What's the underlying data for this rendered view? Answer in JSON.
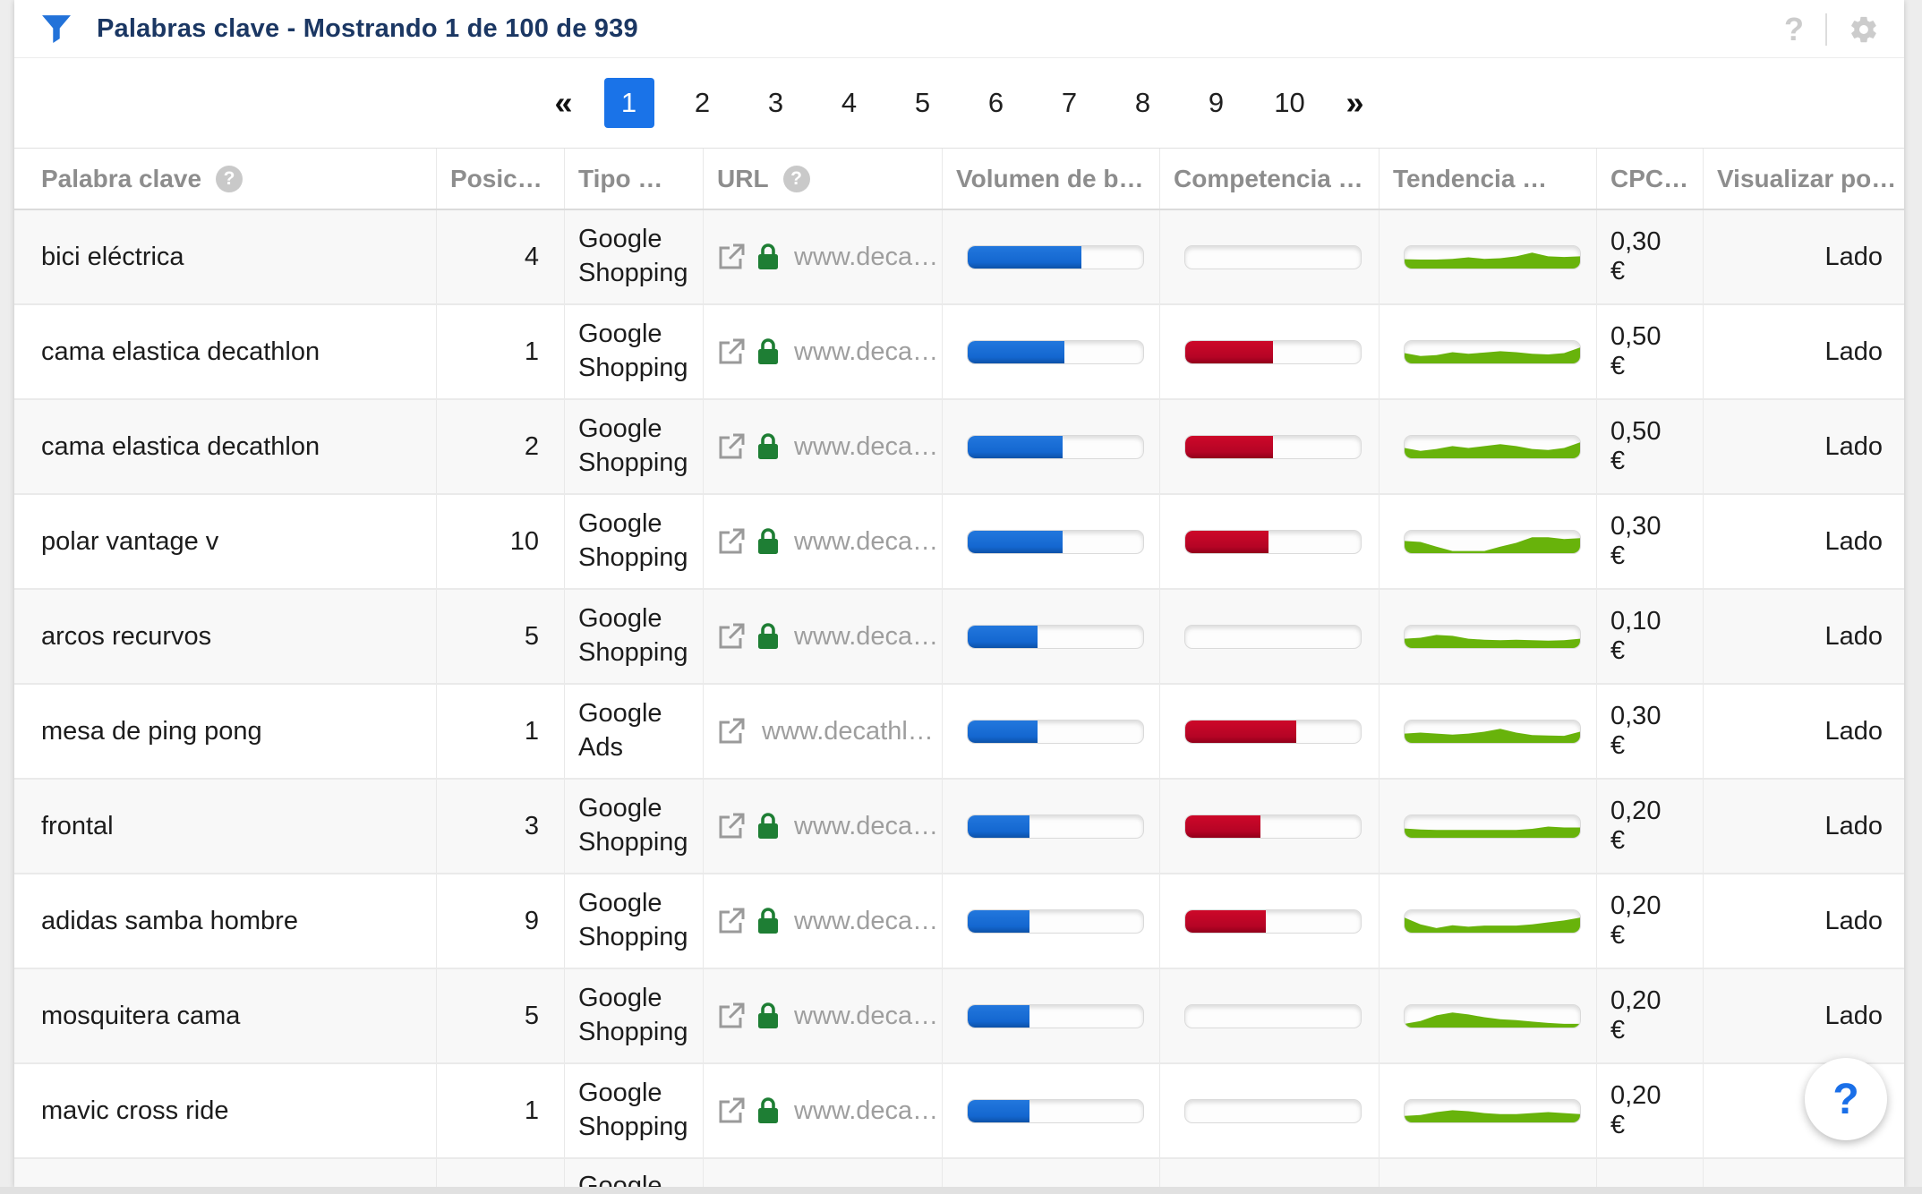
{
  "header": {
    "title": "Palabras clave - Mostrando 1 de 100 de 939",
    "help_label": "?"
  },
  "pagination": {
    "prev": "«",
    "next": "»",
    "pages": [
      "1",
      "2",
      "3",
      "4",
      "5",
      "6",
      "7",
      "8",
      "9",
      "10"
    ],
    "active": "1"
  },
  "table": {
    "columns": [
      {
        "id": "keyword",
        "label": "Palabra clave",
        "help": true
      },
      {
        "id": "position",
        "label": "Posic…",
        "help": false
      },
      {
        "id": "type",
        "label": "Tipo …",
        "help": false
      },
      {
        "id": "url",
        "label": "URL",
        "help": true
      },
      {
        "id": "volume",
        "label": "Volumen de b…",
        "help": false
      },
      {
        "id": "competition",
        "label": "Competencia …",
        "help": false
      },
      {
        "id": "trend",
        "label": "Tendencia …",
        "help": false
      },
      {
        "id": "cpc",
        "label": "CPC…",
        "help": false
      },
      {
        "id": "display",
        "label": "Visualizar po…",
        "help": false
      }
    ],
    "rows": [
      {
        "keyword": "bici eléctrica",
        "position": "4",
        "type": "Google Shopping",
        "url": {
          "text": "www.deca…",
          "lock": true
        },
        "volume": 0.65,
        "competition": 0,
        "trend": [
          0.4,
          0.38,
          0.38,
          0.42,
          0.5,
          0.42,
          0.45,
          0.55,
          0.75,
          0.55,
          0.52,
          0.55
        ],
        "cpc": "0,30 €",
        "display": "Lado"
      },
      {
        "keyword": "cama elastica decathlon",
        "position": "1",
        "type": "Google Shopping",
        "url": {
          "text": "www.deca…",
          "lock": true
        },
        "volume": 0.55,
        "competition": 0.5,
        "trend": [
          0.45,
          0.3,
          0.35,
          0.5,
          0.42,
          0.48,
          0.55,
          0.5,
          0.42,
          0.38,
          0.45,
          0.75
        ],
        "cpc": "0,50 €",
        "display": "Lado"
      },
      {
        "keyword": "cama elastica decathlon",
        "position": "2",
        "type": "Google Shopping",
        "url": {
          "text": "www.deca…",
          "lock": true
        },
        "volume": 0.54,
        "competition": 0.5,
        "trend": [
          0.45,
          0.3,
          0.4,
          0.55,
          0.45,
          0.55,
          0.65,
          0.55,
          0.4,
          0.35,
          0.45,
          0.75
        ],
        "cpc": "0,50 €",
        "display": "Lado"
      },
      {
        "keyword": "polar vantage v",
        "position": "10",
        "type": "Google Shopping",
        "url": {
          "text": "www.deca…",
          "lock": true
        },
        "volume": 0.54,
        "competition": 0.475,
        "trend": [
          0.55,
          0.5,
          0.25,
          0.02,
          0.02,
          0.02,
          0.25,
          0.45,
          0.75,
          0.75,
          0.65,
          0.7
        ],
        "cpc": "0,30 €",
        "display": "Lado"
      },
      {
        "keyword": "arcos recurvos",
        "position": "5",
        "type": "Google Shopping",
        "url": {
          "text": "www.deca…",
          "lock": true
        },
        "volume": 0.4,
        "competition": 0,
        "trend": [
          0.4,
          0.45,
          0.6,
          0.55,
          0.4,
          0.35,
          0.32,
          0.35,
          0.32,
          0.3,
          0.32,
          0.4
        ],
        "cpc": "0,10 €",
        "display": "Lado"
      },
      {
        "keyword": "mesa de ping pong",
        "position": "1",
        "type": "Google Ads",
        "url": {
          "text": "www.decathl…",
          "lock": false
        },
        "volume": 0.4,
        "competition": 0.635,
        "trend": [
          0.4,
          0.45,
          0.4,
          0.35,
          0.4,
          0.5,
          0.65,
          0.45,
          0.32,
          0.3,
          0.28,
          0.5
        ],
        "cpc": "0,30 €",
        "display": "Lado"
      },
      {
        "keyword": "frontal",
        "position": "3",
        "type": "Google Shopping",
        "url": {
          "text": "www.deca…",
          "lock": true
        },
        "volume": 0.35,
        "competition": 0.43,
        "trend": [
          0.4,
          0.35,
          0.32,
          0.32,
          0.32,
          0.32,
          0.32,
          0.32,
          0.38,
          0.5,
          0.45,
          0.45
        ],
        "cpc": "0,20 €",
        "display": "Lado"
      },
      {
        "keyword": "adidas samba hombre",
        "position": "9",
        "type": "Google Shopping",
        "url": {
          "text": "www.deca…",
          "lock": true
        },
        "volume": 0.35,
        "competition": 0.46,
        "trend": [
          0.7,
          0.35,
          0.15,
          0.3,
          0.22,
          0.28,
          0.28,
          0.28,
          0.35,
          0.45,
          0.55,
          0.7
        ],
        "cpc": "0,20 €",
        "display": "Lado"
      },
      {
        "keyword": "mosquitera cama",
        "position": "5",
        "type": "Google Shopping",
        "url": {
          "text": "www.deca…",
          "lock": true
        },
        "volume": 0.35,
        "competition": 0,
        "trend": [
          0.1,
          0.25,
          0.55,
          0.7,
          0.6,
          0.45,
          0.35,
          0.3,
          0.22,
          0.15,
          0.1,
          0.1
        ],
        "cpc": "0,20 €",
        "display": "Lado"
      },
      {
        "keyword": "mavic cross ride",
        "position": "1",
        "type": "Google Shopping",
        "url": {
          "text": "www.deca…",
          "lock": true
        },
        "volume": 0.35,
        "competition": 0,
        "trend": [
          0.25,
          0.3,
          0.45,
          0.55,
          0.5,
          0.4,
          0.35,
          0.35,
          0.4,
          0.45,
          0.4,
          0.35
        ],
        "cpc": "0,20 €",
        "display": ""
      },
      {
        "keyword": "",
        "position": "",
        "type": "Google",
        "url": null,
        "volume": null,
        "competition": null,
        "trend": null,
        "cpc": "",
        "display": "",
        "partial": true
      }
    ]
  },
  "fab": {
    "label": "?"
  },
  "colors": {
    "accent_blue": "#1a73e8",
    "title_navy": "#1b3763",
    "volume_bar": "#1467d0",
    "competition_bar": "#b50425",
    "trend_green": "#68b30b",
    "lock_green": "#1e7e34",
    "icon_gray": "#cccccc"
  }
}
